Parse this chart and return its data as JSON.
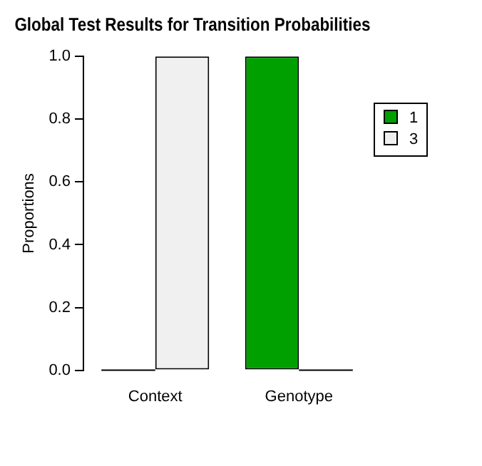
{
  "chart_data": {
    "type": "bar",
    "title": "Global Test Results for Transition Probabilities",
    "ylabel": "Proportions",
    "categories": [
      "Context",
      "Genotype"
    ],
    "series": [
      {
        "name": "1",
        "color": "#00a000",
        "values": [
          0,
          1
        ]
      },
      {
        "name": "3",
        "color": "#f0f0f0",
        "values": [
          1,
          0
        ]
      }
    ],
    "ylim": [
      0,
      1
    ],
    "yticks": [
      {
        "value": 0,
        "label": "0.0"
      },
      0.2,
      0.4,
      0.6,
      0.8,
      {
        "value": 1,
        "label": "1.0"
      }
    ],
    "grid": false,
    "legend": "right"
  }
}
